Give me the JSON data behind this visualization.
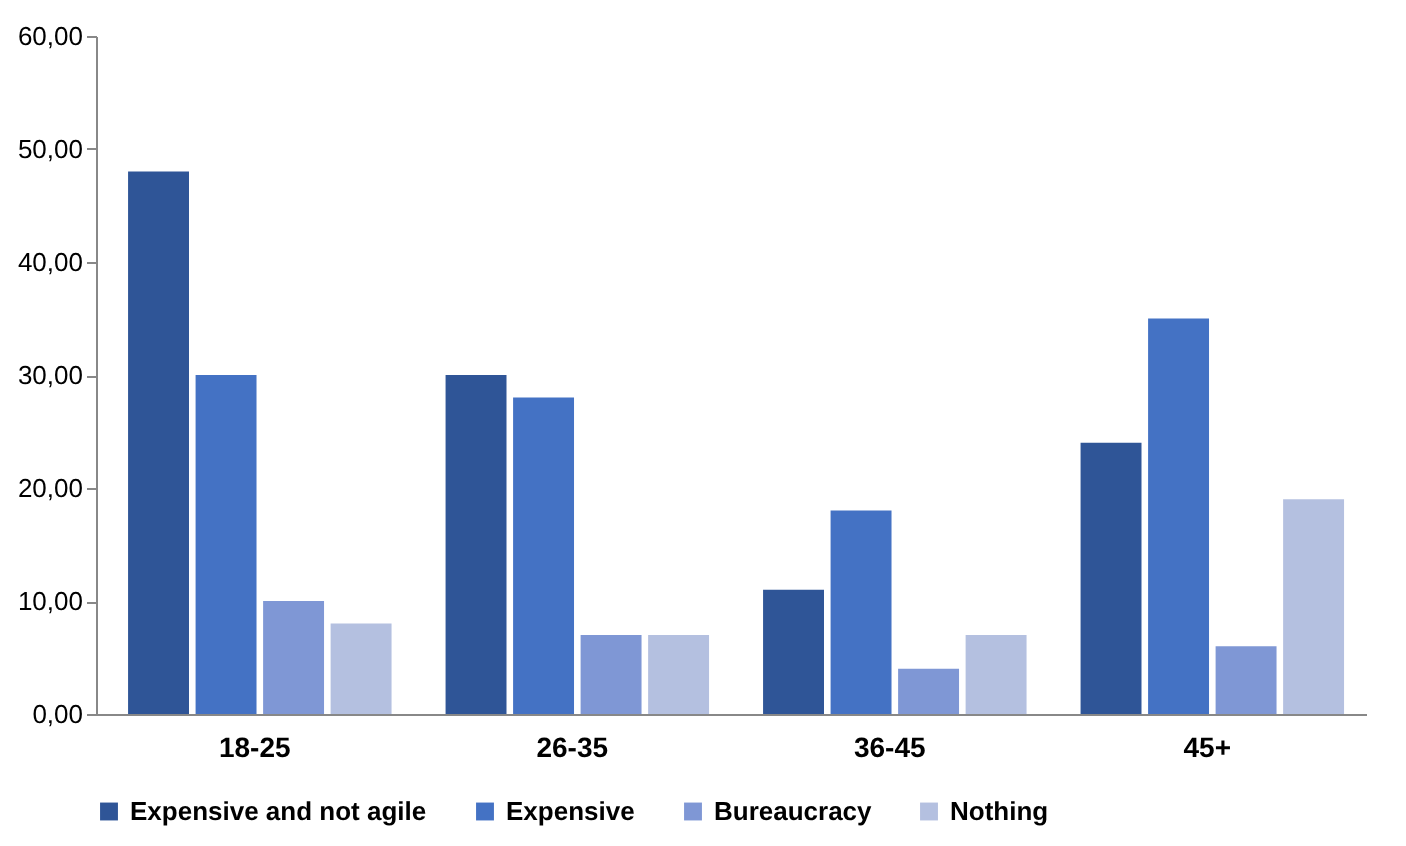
{
  "chart_data": {
    "type": "bar",
    "categories": [
      "18-25",
      "26-35",
      "36-45",
      "45+"
    ],
    "series": [
      {
        "name": "Expensive and not agile",
        "color": "#2f5597",
        "values": [
          48,
          30,
          11,
          24
        ]
      },
      {
        "name": "Expensive",
        "color": "#4472c4",
        "values": [
          30,
          28,
          18,
          35
        ]
      },
      {
        "name": "Bureaucracy",
        "color": "#7f97d5",
        "values": [
          10,
          7,
          4,
          6
        ]
      },
      {
        "name": "Nothing",
        "color": "#b4c0e0",
        "values": [
          8,
          7,
          7,
          19
        ]
      }
    ],
    "ylim": [
      0,
      60
    ],
    "yticks": [
      {
        "value": 0,
        "label": "0,00"
      },
      {
        "value": 10,
        "label": "10,00"
      },
      {
        "value": 20,
        "label": "20,00"
      },
      {
        "value": 30,
        "label": "30,00"
      },
      {
        "value": 40,
        "label": "40,00"
      },
      {
        "value": 50,
        "label": "50,00"
      },
      {
        "value": 60,
        "label": "60,00"
      }
    ],
    "grid": false,
    "legend": "bottom"
  }
}
